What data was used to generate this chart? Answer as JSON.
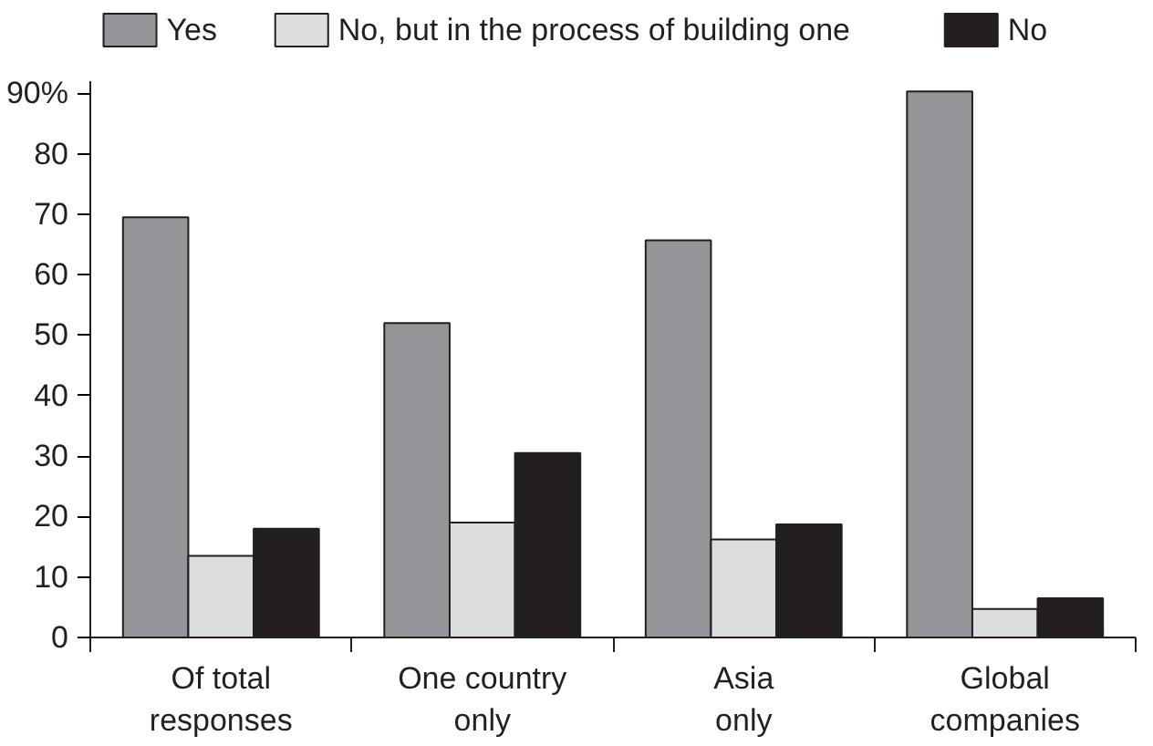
{
  "chart_data": {
    "type": "bar",
    "categories": [
      "Of total responses",
      "One country only",
      "Asia only",
      "Global companies"
    ],
    "series": [
      {
        "name": "Yes",
        "color": "#939598",
        "values": [
          69.5,
          52,
          65.7,
          90.3
        ]
      },
      {
        "name": "No, but in the process of building one",
        "color": "#dcdddf",
        "values": [
          13.5,
          19,
          16.2,
          4.7
        ]
      },
      {
        "name": "No",
        "color": "#231f20",
        "values": [
          18,
          30.5,
          18.7,
          6.5
        ]
      }
    ],
    "ylim": [
      0,
      92
    ],
    "yticks": [
      0,
      10,
      20,
      30,
      40,
      50,
      60,
      70,
      80,
      {
        "value": 90,
        "label": "90%"
      }
    ],
    "grid": false,
    "legend": "top"
  }
}
